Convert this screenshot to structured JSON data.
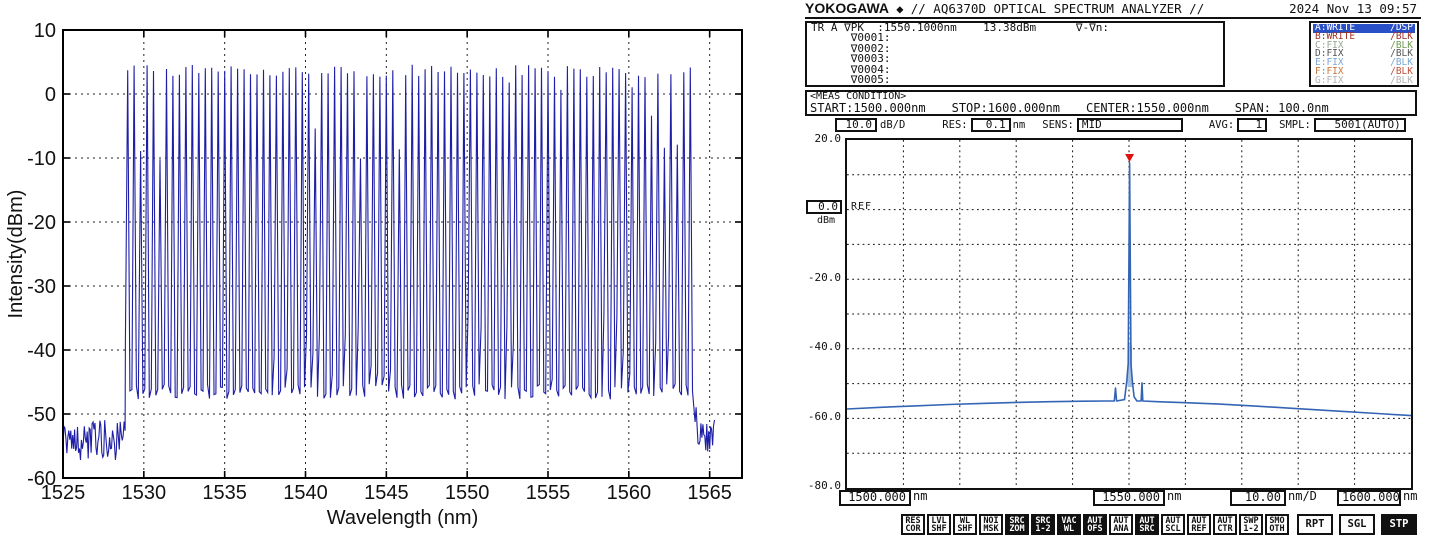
{
  "seed": 20241113,
  "chart_data": [
    {
      "name": "frequency-comb-spectrum",
      "type": "line",
      "title": "",
      "xlabel": "Wavelength (nm)",
      "ylabel": "Intensity(dBm)",
      "xlim": [
        1525,
        1567
      ],
      "ylim": [
        -60,
        10
      ],
      "xticks": [
        1525,
        1530,
        1535,
        1540,
        1545,
        1550,
        1555,
        1560,
        1565
      ],
      "yticks": [
        10,
        0,
        -10,
        -20,
        -30,
        -40,
        -50,
        -60
      ],
      "grid": true,
      "comb": {
        "start_nm": 1529.0,
        "end_nm": 1563.9,
        "spacing_nm": 0.4,
        "peak_dbm": 4.6,
        "peak_jitter_db": 2.0,
        "short_line_prob": 0.18,
        "short_line_extra_db": 12,
        "valley_dbm": -46.5,
        "valley_jitter_db": 1.2,
        "high_valley_prob": 0.3,
        "high_valley_extra_db": 13
      },
      "noise_left": {
        "start_nm": 1525.0,
        "end_nm": 1528.85,
        "mean_dbm": -54.0,
        "jitter_db": 3.2
      },
      "noise_right": {
        "start_nm": 1564.1,
        "end_nm": 1565.3,
        "mean_dbm": -53.5,
        "jitter_db": 2.6
      },
      "color": "#1e1ea6"
    },
    {
      "name": "osa-trace-A",
      "type": "line",
      "xlim": [
        1500,
        1600
      ],
      "ylim": [
        -80,
        20
      ],
      "x_div_nm": 10,
      "y_div_db": 10,
      "peak": {
        "wavelength_nm": 1550.1,
        "power_dbm": 13.38
      },
      "points": [
        [
          1500,
          -57.3
        ],
        [
          1506,
          -56.8
        ],
        [
          1512,
          -56.4
        ],
        [
          1518,
          -56.0
        ],
        [
          1524,
          -55.7
        ],
        [
          1530,
          -55.4
        ],
        [
          1536,
          -55.2
        ],
        [
          1542,
          -55.05
        ],
        [
          1546,
          -55.0
        ],
        [
          1547.4,
          -55.0
        ],
        [
          1547.6,
          -51.3
        ],
        [
          1547.8,
          -55.0
        ],
        [
          1549.2,
          -54.6
        ],
        [
          1549.6,
          -49.5
        ],
        [
          1549.85,
          -44.3
        ],
        [
          1550.1,
          13.38
        ],
        [
          1550.35,
          -44.5
        ],
        [
          1550.6,
          -49.5
        ],
        [
          1550.9,
          -53.8
        ],
        [
          1551.4,
          -55.0
        ],
        [
          1552.15,
          -55.0
        ],
        [
          1552.3,
          -49.8
        ],
        [
          1552.45,
          -55.0
        ],
        [
          1555,
          -55.2
        ],
        [
          1560,
          -55.5
        ],
        [
          1566,
          -55.9
        ],
        [
          1572,
          -56.4
        ],
        [
          1580,
          -57.2
        ],
        [
          1588,
          -58.0
        ],
        [
          1594,
          -58.6
        ],
        [
          1600,
          -59.2
        ]
      ],
      "color": "#3465b4",
      "pedestal_color": "#a8c0e0",
      "marker_color": "#e01010"
    }
  ],
  "left_figure": {
    "xlabel": "Wavelength (nm)",
    "ylabel": "Intensity(dBm)"
  },
  "osa": {
    "header": {
      "brand": "YOKOGAWA",
      "diamond": "◆",
      "title": "// AQ6370D OPTICAL SPECTRUM ANALYZER //",
      "datetime": "2024 Nov 13 09:57"
    },
    "marker_info": {
      "line1": "TR A ∇PK  :1550.1000nm    13.38dBm      ∇-∇n:",
      "rows": [
        "      ∇0001:",
        "      ∇0002:",
        "      ∇0003:",
        "      ∇0004:",
        "      ∇0005:"
      ]
    },
    "traces": [
      {
        "label": "A:WRITE",
        "status": "/DSP",
        "selected": true,
        "color": "#ffffff",
        "bg": "#2a50c8",
        "status_color": "#ffffff"
      },
      {
        "label": "B:WRITE",
        "status": "/BLK",
        "selected": false,
        "color": "#a03028",
        "bg": "",
        "status_color": "#a03028"
      },
      {
        "label": "C:FIX",
        "status": "/BLK",
        "selected": false,
        "color": "#98a898",
        "bg": "",
        "status_color": "#6f9a50"
      },
      {
        "label": "D:FIX",
        "status": "/BLK",
        "selected": false,
        "color": "#545454",
        "bg": "",
        "status_color": "#545454"
      },
      {
        "label": "E:FIX",
        "status": "/BLK",
        "selected": false,
        "color": "#7ba7d4",
        "bg": "",
        "status_color": "#7ba7d4"
      },
      {
        "label": "F:FIX",
        "status": "/BLK",
        "selected": false,
        "color": "#c87840",
        "bg": "",
        "status_color": "#c0503a"
      },
      {
        "label": "G:FIX",
        "status": "/BLK",
        "selected": false,
        "color": "#b4b4b4",
        "bg": "",
        "status_color": "#b4b4b4"
      }
    ],
    "meas_condition": {
      "heading": "<MEAS CONDITION>",
      "start": "START:1500.000nm",
      "stop": "STOP:1600.000nm",
      "center": "CENTER:1550.000nm",
      "span": "SPAN: 100.0nm"
    },
    "settings": {
      "scale_value": "10.0",
      "scale_unit": "dB/D",
      "res_label": "RES:",
      "res_value": "0.1",
      "res_unit": "nm",
      "sens_label": "SENS:",
      "sens_value": "MID",
      "avg_label": "AVG:",
      "avg_value": "1",
      "smpl_label": "SMPL:",
      "smpl_value": "5001(AUTO)"
    },
    "y_axis": {
      "top": "20.0",
      "ref_value": "0.0",
      "ref_unit": "dBm",
      "ref_label": "REF",
      "minus20": "-20.0",
      "minus40": "-40.0",
      "minus60": "-60.0",
      "minus80": "-80.0"
    },
    "x_axis": {
      "start_value": "1500.000",
      "start_unit": "nm",
      "center_value": "1550.000",
      "center_unit": "nm",
      "div_value": "10.00",
      "div_unit": "nm/D",
      "stop_value": "1600.000",
      "stop_unit": "nm"
    },
    "softkeys": {
      "keys": [
        {
          "top": "RES",
          "bottom": "COR",
          "dark": false
        },
        {
          "top": "LVL",
          "bottom": "SHF",
          "dark": false
        },
        {
          "top": "WL",
          "bottom": "SHF",
          "dark": false
        },
        {
          "top": "NOI",
          "bottom": "MSK",
          "dark": false
        },
        {
          "top": "SRC",
          "bottom": "ZOM",
          "dark": true
        },
        {
          "top": "SRC",
          "bottom": "1-2",
          "dark": true
        },
        {
          "top": "VAC",
          "bottom": "WL",
          "dark": true
        },
        {
          "top": "AUT",
          "bottom": "OFS",
          "dark": true
        },
        {
          "top": "AUT",
          "bottom": "ANA",
          "dark": false
        },
        {
          "top": "AUT",
          "bottom": "SRC",
          "dark": true
        },
        {
          "top": "AUT",
          "bottom": "SCL",
          "dark": false
        },
        {
          "top": "AUT",
          "bottom": "REF",
          "dark": false
        },
        {
          "top": "AUT",
          "bottom": "CTR",
          "dark": false
        },
        {
          "top": "SWP",
          "bottom": "1-2",
          "dark": false
        },
        {
          "top": "SMO",
          "bottom": "OTH",
          "dark": false
        }
      ],
      "action_keys": [
        {
          "label": "RPT",
          "dark": false
        },
        {
          "label": "SGL",
          "dark": false
        },
        {
          "label": "STP",
          "dark": true
        }
      ]
    }
  }
}
